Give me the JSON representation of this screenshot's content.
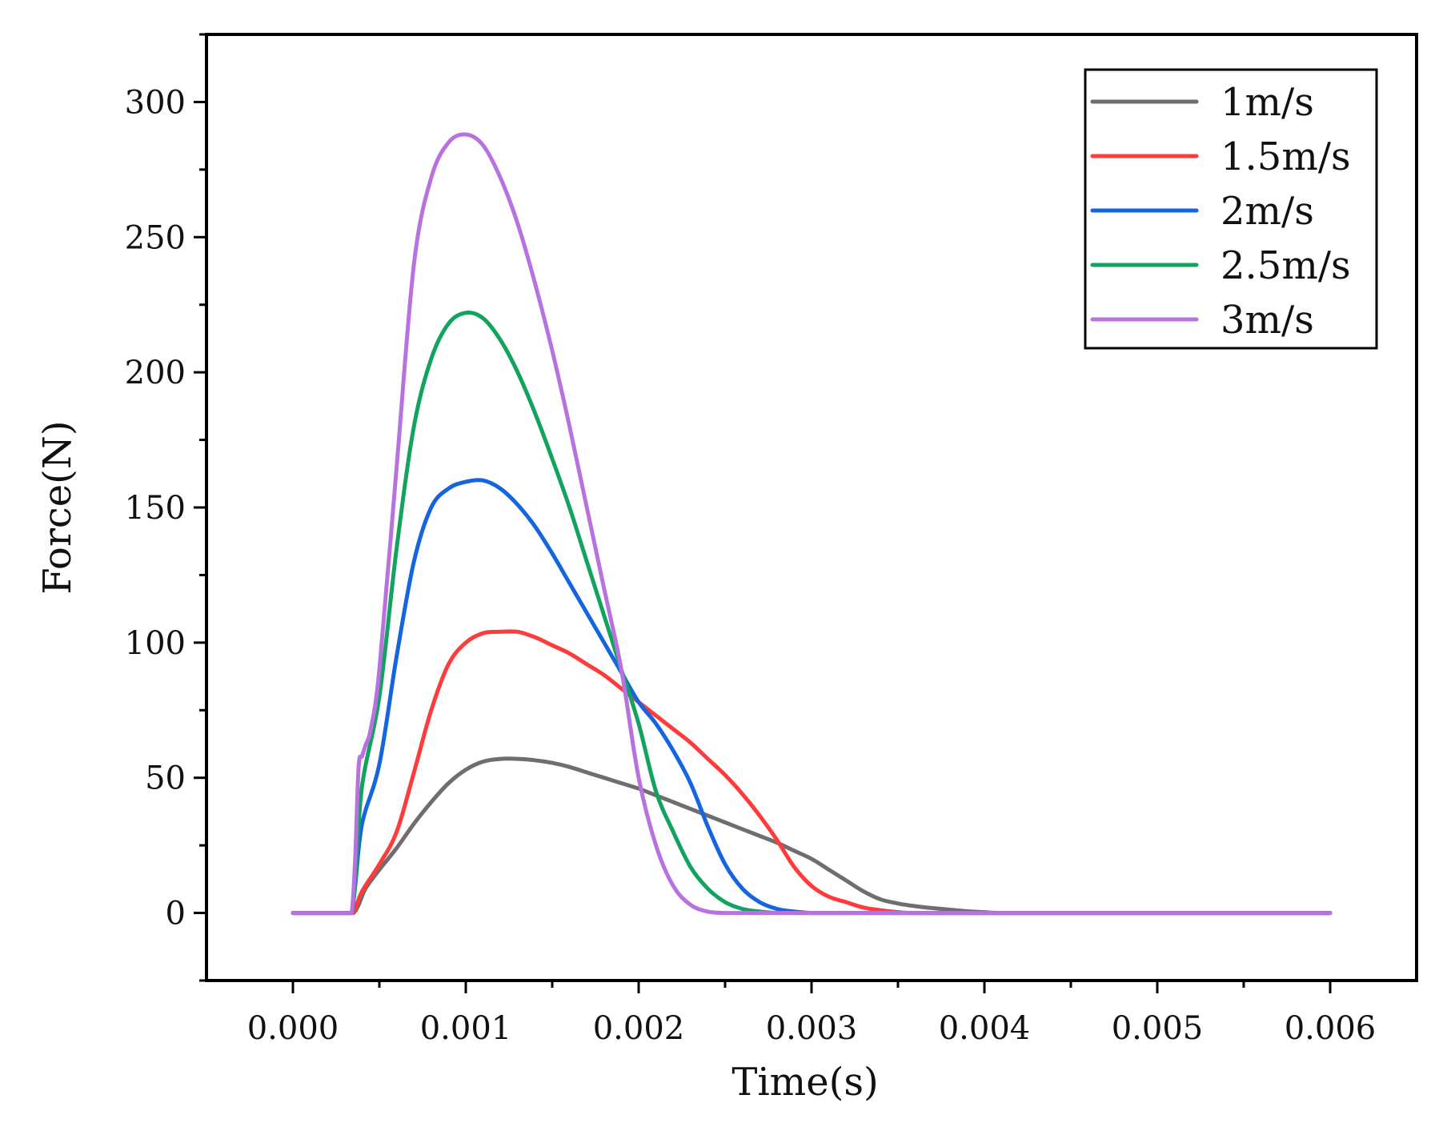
{
  "chart_data": {
    "type": "line",
    "title": "",
    "xlabel": "Time(s)",
    "ylabel": "Force(N)",
    "xlim": [
      -0.0005,
      0.0065
    ],
    "ylim": [
      -25,
      325
    ],
    "xticks": [
      0.0,
      0.001,
      0.002,
      0.003,
      0.004,
      0.005,
      0.006
    ],
    "xtick_labels": [
      "0.000",
      "0.001",
      "0.002",
      "0.003",
      "0.004",
      "0.005",
      "0.006"
    ],
    "yticks": [
      0,
      50,
      100,
      150,
      200,
      250,
      300
    ],
    "ytick_labels": [
      "0",
      "50",
      "100",
      "150",
      "200",
      "250",
      "300"
    ],
    "grid": false,
    "legend_position": "top-right",
    "series": [
      {
        "name": "1m/s",
        "color": "#6e6e6e",
        "x": [
          0,
          0.00031,
          0.00035,
          0.00038,
          0.00042,
          0.0005,
          0.0006,
          0.0007,
          0.0008,
          0.0009,
          0.001,
          0.0011,
          0.0012,
          0.0013,
          0.0014,
          0.0015,
          0.0016,
          0.0017,
          0.0018,
          0.0019,
          0.002,
          0.0021,
          0.0022,
          0.0023,
          0.0024,
          0.0025,
          0.0026,
          0.0027,
          0.0028,
          0.0029,
          0.003,
          0.0031,
          0.0032,
          0.0033,
          0.0034,
          0.0035,
          0.0036,
          0.0037,
          0.0038,
          0.0039,
          0.004,
          0.0041,
          0.0045,
          0.005,
          0.0055,
          0.006
        ],
        "y": [
          0,
          0,
          0,
          3,
          9,
          16,
          24,
          33,
          41,
          48,
          53,
          56,
          57,
          57,
          56.5,
          55.5,
          54,
          52,
          50,
          48,
          46,
          43.5,
          41,
          38.5,
          36,
          33.5,
          31,
          28.5,
          26,
          23,
          20,
          16,
          12,
          8,
          5,
          3.5,
          2.5,
          1.8,
          1.2,
          0.6,
          0.3,
          0,
          0,
          0,
          0,
          0
        ]
      },
      {
        "name": "1.5m/s",
        "color": "#ff3b3b",
        "x": [
          0,
          0.00031,
          0.00035,
          0.0004,
          0.0005,
          0.0006,
          0.0007,
          0.0008,
          0.0009,
          0.001,
          0.0011,
          0.0012,
          0.0013,
          0.0014,
          0.0015,
          0.0016,
          0.0017,
          0.0018,
          0.0019,
          0.002,
          0.0021,
          0.0022,
          0.0023,
          0.0024,
          0.0025,
          0.0026,
          0.0027,
          0.0028,
          0.0029,
          0.003,
          0.0031,
          0.0032,
          0.0033,
          0.0034,
          0.0035,
          0.0036,
          0.004,
          0.005,
          0.006
        ],
        "y": [
          0,
          0,
          0,
          8,
          18,
          30,
          52,
          75,
          92,
          100,
          103.5,
          104,
          104,
          102,
          99,
          96,
          92,
          88,
          83,
          78,
          73,
          68,
          63,
          57,
          51,
          44,
          36,
          27,
          17,
          10,
          6,
          4,
          2,
          1,
          0.3,
          0,
          0,
          0,
          0
        ]
      },
      {
        "name": "2m/s",
        "color": "#1565e0",
        "x": [
          0,
          0.00031,
          0.00034,
          0.00036,
          0.0004,
          0.0005,
          0.0006,
          0.0007,
          0.0008,
          0.0009,
          0.001,
          0.0011,
          0.0012,
          0.0013,
          0.0014,
          0.0015,
          0.0016,
          0.0017,
          0.0018,
          0.0019,
          0.002,
          0.0021,
          0.0022,
          0.0023,
          0.0024,
          0.0025,
          0.0026,
          0.0027,
          0.0028,
          0.0029,
          0.003,
          0.0031,
          0.004,
          0.005,
          0.006
        ],
        "y": [
          0,
          0,
          0,
          10,
          33,
          55,
          95,
          130,
          150,
          157,
          159.5,
          160,
          157,
          151,
          143,
          133,
          122,
          111,
          100,
          89,
          78,
          70,
          60,
          48,
          32,
          18,
          9,
          4,
          1.5,
          0.5,
          0,
          0,
          0,
          0,
          0
        ]
      },
      {
        "name": "2.5m/s",
        "color": "#12a35f",
        "x": [
          0,
          0.00031,
          0.00034,
          0.00036,
          0.0004,
          0.0005,
          0.0006,
          0.0007,
          0.0008,
          0.0009,
          0.001,
          0.0011,
          0.0012,
          0.0013,
          0.0014,
          0.0015,
          0.0016,
          0.0017,
          0.0018,
          0.0019,
          0.002,
          0.0021,
          0.0022,
          0.0023,
          0.0024,
          0.0025,
          0.0026,
          0.0027,
          0.0028,
          0.003,
          0.004,
          0.005,
          0.006
        ],
        "y": [
          0,
          0,
          0,
          12,
          47,
          80,
          135,
          180,
          205,
          218,
          222,
          220,
          212,
          200,
          185,
          168,
          150,
          130,
          110,
          90,
          70,
          45,
          30,
          17,
          9,
          4,
          1.5,
          0.5,
          0,
          0,
          0,
          0,
          0
        ]
      },
      {
        "name": "3m/s",
        "color": "#b872e0",
        "x": [
          0,
          0.00031,
          0.00034,
          0.00036,
          0.00038,
          0.0004,
          0.00042,
          0.00045,
          0.0005,
          0.0006,
          0.0007,
          0.0008,
          0.0009,
          0.001,
          0.0011,
          0.0012,
          0.0013,
          0.0014,
          0.0015,
          0.0016,
          0.0017,
          0.0018,
          0.0019,
          0.002,
          0.0021,
          0.0022,
          0.0023,
          0.0024,
          0.0025,
          0.0026,
          0.003,
          0.004,
          0.005,
          0.006
        ],
        "y": [
          0,
          0,
          0,
          20,
          54,
          58,
          62,
          68,
          90,
          165,
          240,
          272,
          285,
          288,
          284,
          272,
          255,
          233,
          208,
          180,
          150,
          120,
          90,
          50,
          25,
          10,
          3,
          0.5,
          0,
          0,
          0,
          0,
          0,
          0
        ]
      }
    ]
  }
}
